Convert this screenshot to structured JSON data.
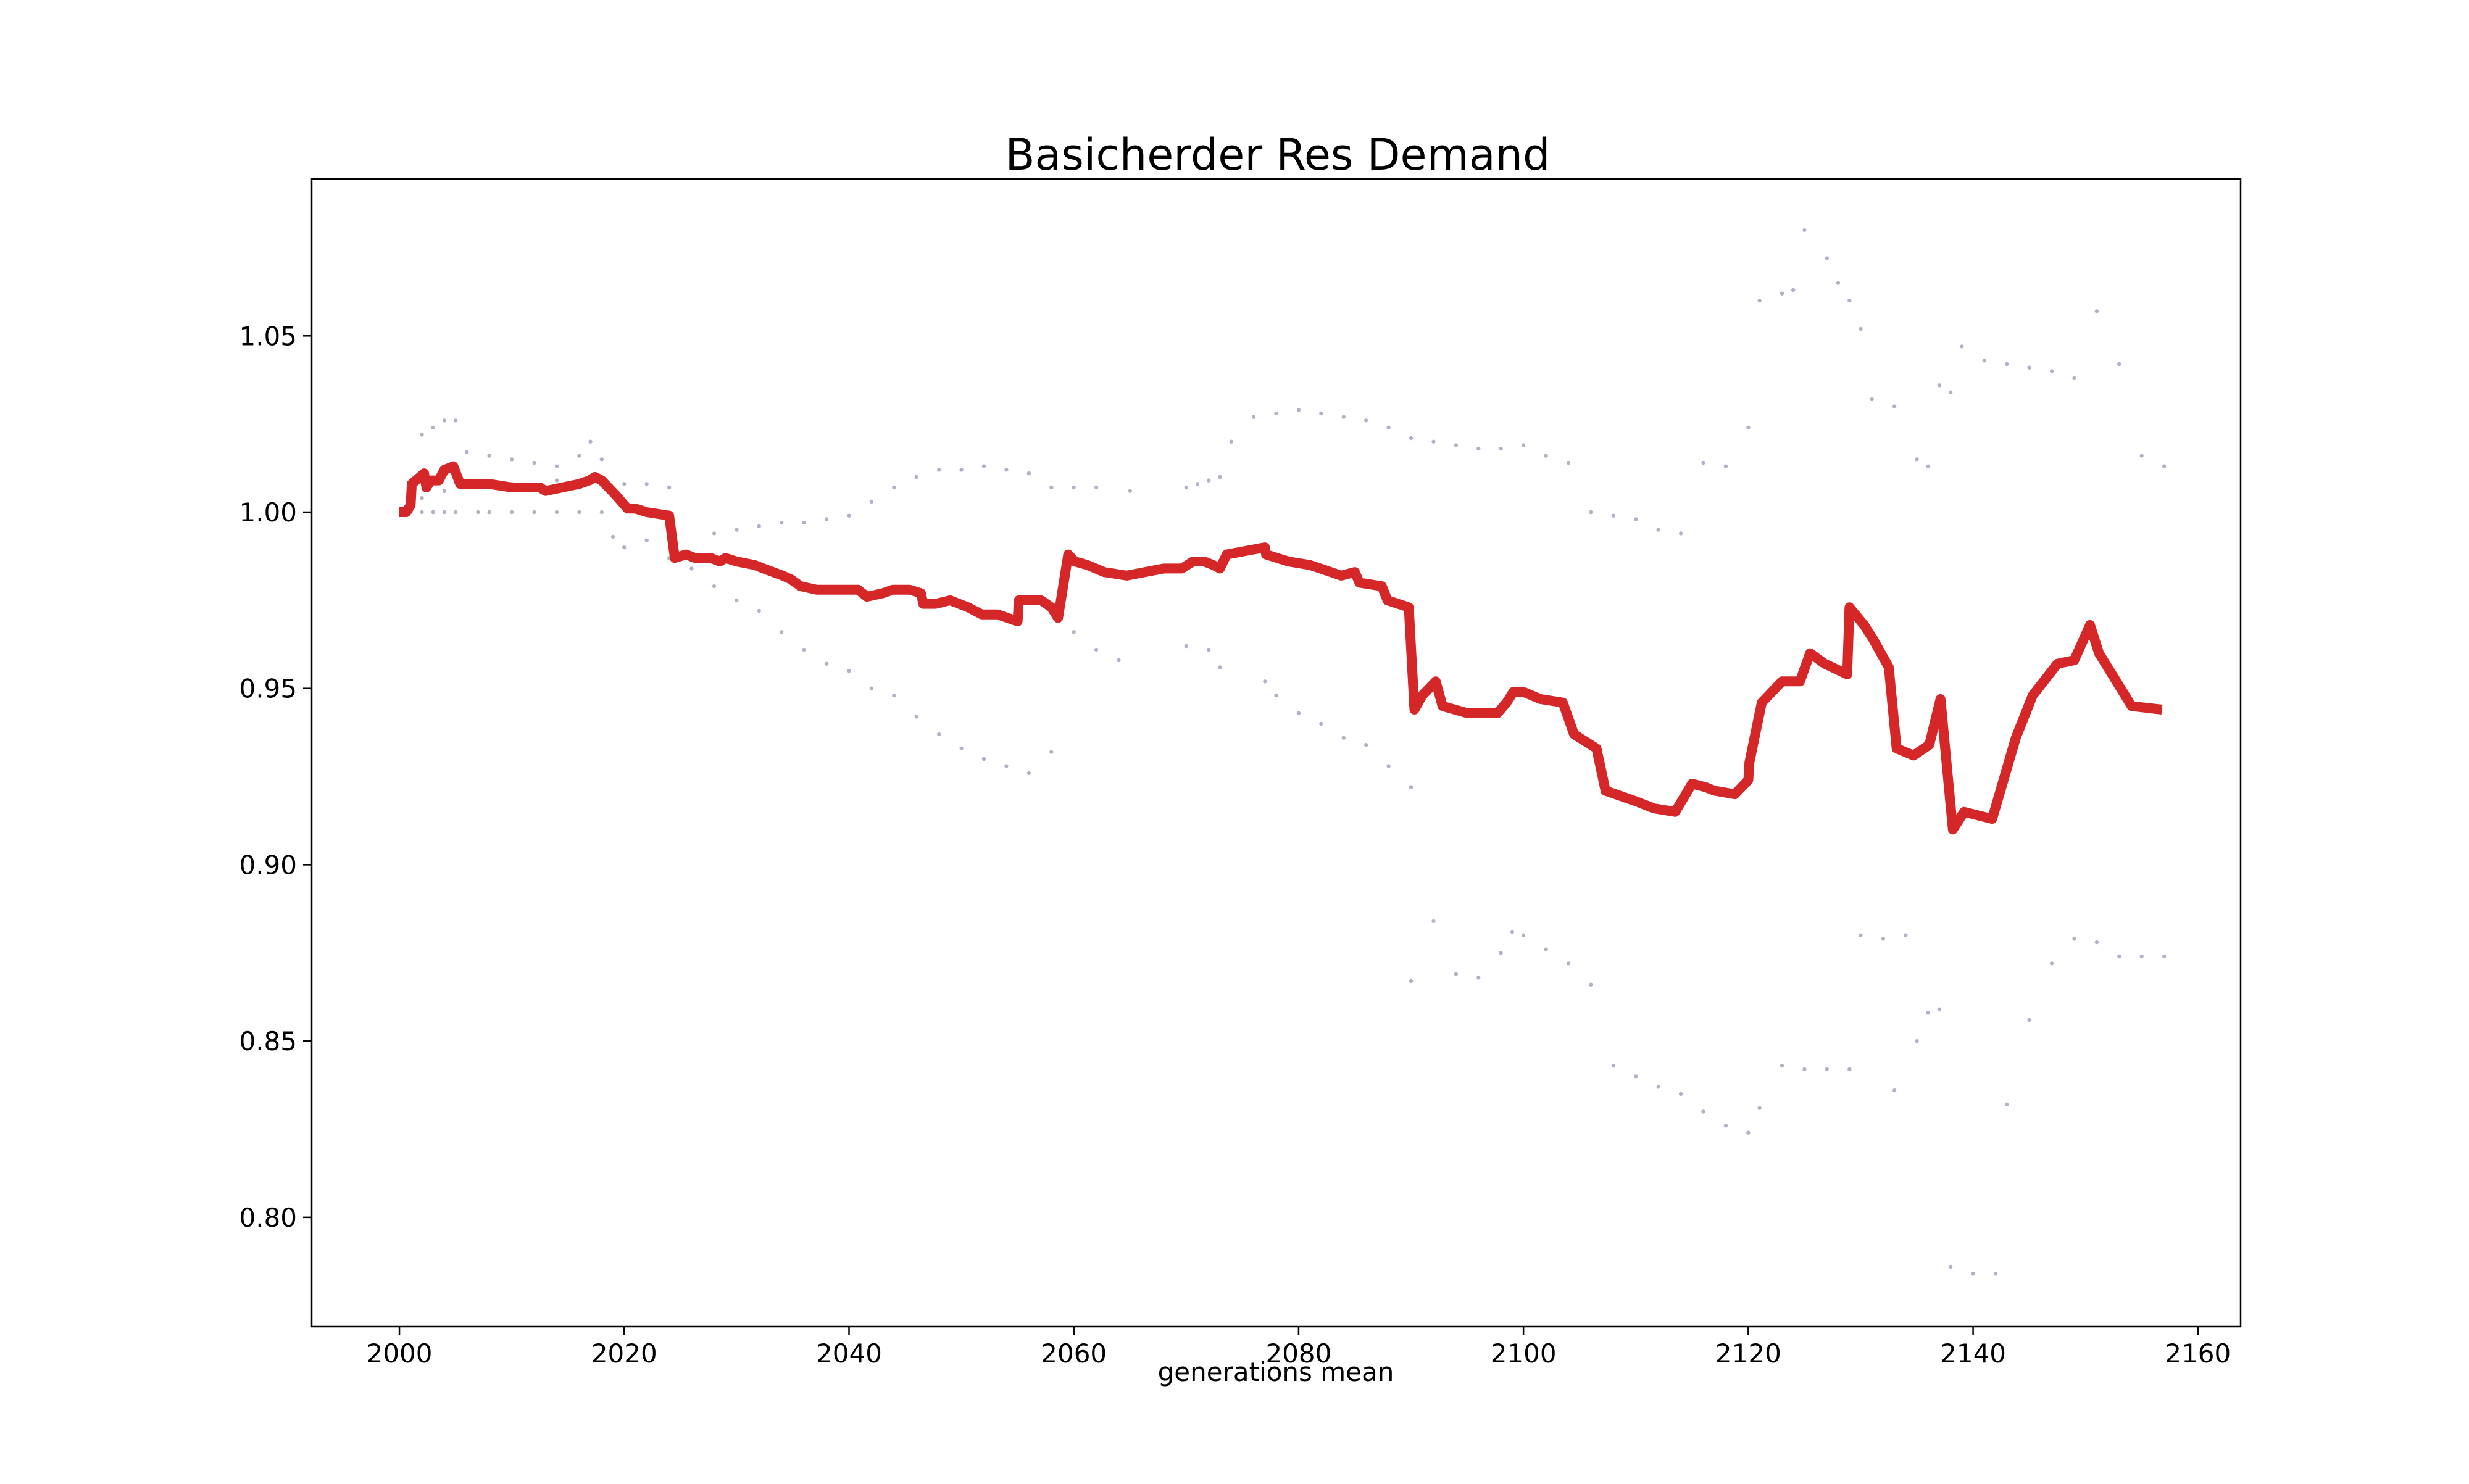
{
  "chart_data": {
    "type": "line",
    "title": "Basicherder Res Demand",
    "xlabel": "generations mean",
    "ylabel": "",
    "xlim": [
      1992.2,
      2163.8
    ],
    "ylim": [
      0.769,
      1.0945
    ],
    "x_ticks": [
      "2000",
      "2020",
      "2040",
      "2060",
      "2080",
      "2100",
      "2120",
      "2140",
      "2160"
    ],
    "y_ticks": [
      "0.80",
      "0.85",
      "0.90",
      "0.95",
      "1.00",
      "1.05"
    ],
    "grid": false,
    "legend": "none",
    "colors": {
      "mean_line": "#d62728",
      "scatter": "#b0b3c6",
      "frame": "#000000"
    },
    "series": [
      {
        "role": "mean",
        "points": [
          [
            2000.0,
            1.0
          ],
          [
            2000.6,
            1.0
          ],
          [
            2001.0,
            1.002
          ],
          [
            2001.1,
            1.008
          ],
          [
            2002.2,
            1.011
          ],
          [
            2002.4,
            1.007
          ],
          [
            2002.8,
            1.009
          ],
          [
            2003.5,
            1.009
          ],
          [
            2004.0,
            1.012
          ],
          [
            2004.8,
            1.013
          ],
          [
            2005.4,
            1.008
          ],
          [
            2008.0,
            1.008
          ],
          [
            2010.0,
            1.007
          ],
          [
            2012.5,
            1.007
          ],
          [
            2013.0,
            1.006
          ],
          [
            2014.5,
            1.007
          ],
          [
            2016.0,
            1.008
          ],
          [
            2016.9,
            1.009
          ],
          [
            2017.4,
            1.01
          ],
          [
            2018.0,
            1.009
          ],
          [
            2019.2,
            1.005
          ],
          [
            2020.3,
            1.001
          ],
          [
            2021.0,
            1.001
          ],
          [
            2022.0,
            1.0
          ],
          [
            2024.0,
            0.999
          ],
          [
            2024.5,
            0.987
          ],
          [
            2025.5,
            0.988
          ],
          [
            2026.3,
            0.987
          ],
          [
            2027.7,
            0.987
          ],
          [
            2028.5,
            0.986
          ],
          [
            2029.0,
            0.987
          ],
          [
            2030.0,
            0.986
          ],
          [
            2031.6,
            0.985
          ],
          [
            2032.4,
            0.984
          ],
          [
            2034.1,
            0.982
          ],
          [
            2034.8,
            0.981
          ],
          [
            2035.7,
            0.979
          ],
          [
            2037.1,
            0.978
          ],
          [
            2040.8,
            0.978
          ],
          [
            2041.6,
            0.976
          ],
          [
            2043.0,
            0.977
          ],
          [
            2043.9,
            0.978
          ],
          [
            2045.4,
            0.978
          ],
          [
            2046.4,
            0.977
          ],
          [
            2046.6,
            0.974
          ],
          [
            2047.7,
            0.974
          ],
          [
            2049.0,
            0.975
          ],
          [
            2050.6,
            0.973
          ],
          [
            2051.8,
            0.971
          ],
          [
            2053.2,
            0.971
          ],
          [
            2055.0,
            0.969
          ],
          [
            2055.1,
            0.975
          ],
          [
            2057.1,
            0.975
          ],
          [
            2058.0,
            0.973
          ],
          [
            2058.6,
            0.97
          ],
          [
            2059.5,
            0.988
          ],
          [
            2060.1,
            0.986
          ],
          [
            2061.2,
            0.985
          ],
          [
            2062.7,
            0.983
          ],
          [
            2064.7,
            0.982
          ],
          [
            2068.0,
            0.984
          ],
          [
            2069.6,
            0.984
          ],
          [
            2070.6,
            0.986
          ],
          [
            2071.6,
            0.986
          ],
          [
            2072.4,
            0.985
          ],
          [
            2073.0,
            0.984
          ],
          [
            2073.6,
            0.988
          ],
          [
            2077.0,
            0.99
          ],
          [
            2077.1,
            0.988
          ],
          [
            2079.1,
            0.986
          ],
          [
            2081.0,
            0.985
          ],
          [
            2083.8,
            0.982
          ],
          [
            2085.0,
            0.983
          ],
          [
            2085.4,
            0.98
          ],
          [
            2087.4,
            0.979
          ],
          [
            2087.9,
            0.975
          ],
          [
            2089.8,
            0.973
          ],
          [
            2090.3,
            0.944
          ],
          [
            2091.0,
            0.948
          ],
          [
            2092.2,
            0.952
          ],
          [
            2092.8,
            0.945
          ],
          [
            2095.0,
            0.943
          ],
          [
            2097.7,
            0.943
          ],
          [
            2098.5,
            0.946
          ],
          [
            2099.1,
            0.949
          ],
          [
            2100.0,
            0.949
          ],
          [
            2101.5,
            0.947
          ],
          [
            2103.5,
            0.946
          ],
          [
            2104.5,
            0.937
          ],
          [
            2106.5,
            0.933
          ],
          [
            2107.3,
            0.921
          ],
          [
            2110.0,
            0.918
          ],
          [
            2111.6,
            0.916
          ],
          [
            2113.5,
            0.915
          ],
          [
            2115.0,
            0.923
          ],
          [
            2116.2,
            0.922
          ],
          [
            2117.0,
            0.921
          ],
          [
            2118.8,
            0.92
          ],
          [
            2120.0,
            0.924
          ],
          [
            2120.1,
            0.929
          ],
          [
            2121.2,
            0.946
          ],
          [
            2123.0,
            0.952
          ],
          [
            2124.6,
            0.952
          ],
          [
            2125.5,
            0.96
          ],
          [
            2126.8,
            0.957
          ],
          [
            2128.8,
            0.954
          ],
          [
            2129.0,
            0.973
          ],
          [
            2130.3,
            0.968
          ],
          [
            2131.1,
            0.964
          ],
          [
            2132.5,
            0.956
          ],
          [
            2133.2,
            0.933
          ],
          [
            2134.7,
            0.931
          ],
          [
            2136.1,
            0.934
          ],
          [
            2137.1,
            0.947
          ],
          [
            2138.2,
            0.91
          ],
          [
            2139.2,
            0.915
          ],
          [
            2141.7,
            0.913
          ],
          [
            2143.8,
            0.936
          ],
          [
            2145.3,
            0.948
          ],
          [
            2147.5,
            0.957
          ],
          [
            2149.0,
            0.958
          ],
          [
            2150.4,
            0.968
          ],
          [
            2151.2,
            0.96
          ],
          [
            2154.1,
            0.945
          ],
          [
            2156.8,
            0.944
          ]
        ]
      },
      {
        "role": "samples",
        "points": [
          [
            2001,
            1.0
          ],
          [
            2002,
            1.0
          ],
          [
            2003,
            1.0
          ],
          [
            2004,
            1.0
          ],
          [
            2005,
            1.0
          ],
          [
            2007,
            1.0
          ],
          [
            2008,
            1.0
          ],
          [
            2010,
            1.0
          ],
          [
            2012,
            1.0
          ],
          [
            2014,
            1.0
          ],
          [
            2016,
            1.0
          ],
          [
            2018,
            1.0
          ],
          [
            2002,
            1.022
          ],
          [
            2003,
            1.024
          ],
          [
            2004,
            1.026
          ],
          [
            2005,
            1.026
          ],
          [
            2006,
            1.017
          ],
          [
            2008,
            1.016
          ],
          [
            2010,
            1.015
          ],
          [
            2012,
            1.014
          ],
          [
            2014,
            1.013
          ],
          [
            2016,
            1.016
          ],
          [
            2017,
            1.02
          ],
          [
            2018,
            1.015
          ],
          [
            2002,
            1.004
          ],
          [
            2004,
            1.006
          ],
          [
            2006,
            1.007
          ],
          [
            2010,
            1.008
          ],
          [
            2014,
            1.009
          ],
          [
            2018,
            1.009
          ],
          [
            2020,
            1.008
          ],
          [
            2022,
            1.008
          ],
          [
            2024,
            1.007
          ],
          [
            2019,
            0.993
          ],
          [
            2020,
            0.99
          ],
          [
            2022,
            0.992
          ],
          [
            2024,
            0.987
          ],
          [
            2026,
            0.984
          ],
          [
            2028,
            0.979
          ],
          [
            2030,
            0.975
          ],
          [
            2032,
            0.972
          ],
          [
            2034,
            0.966
          ],
          [
            2036,
            0.961
          ],
          [
            2038,
            0.957
          ],
          [
            2040,
            0.955
          ],
          [
            2042,
            0.95
          ],
          [
            2044,
            0.948
          ],
          [
            2046,
            0.942
          ],
          [
            2048,
            0.937
          ],
          [
            2050,
            0.933
          ],
          [
            2052,
            0.93
          ],
          [
            2054,
            0.928
          ],
          [
            2056,
            0.926
          ],
          [
            2058,
            0.932
          ],
          [
            2028,
            0.994
          ],
          [
            2030,
            0.995
          ],
          [
            2032,
            0.996
          ],
          [
            2034,
            0.997
          ],
          [
            2036,
            0.997
          ],
          [
            2038,
            0.998
          ],
          [
            2040,
            0.999
          ],
          [
            2042,
            1.003
          ],
          [
            2044,
            1.007
          ],
          [
            2046,
            1.01
          ],
          [
            2048,
            1.012
          ],
          [
            2050,
            1.012
          ],
          [
            2052,
            1.013
          ],
          [
            2054,
            1.012
          ],
          [
            2056,
            1.011
          ],
          [
            2058,
            1.007
          ],
          [
            2060,
            1.007
          ],
          [
            2062,
            1.007
          ],
          [
            2065,
            1.006
          ],
          [
            2060,
            0.966
          ],
          [
            2062,
            0.961
          ],
          [
            2064,
            0.958
          ],
          [
            2070,
            0.962
          ],
          [
            2072,
            0.961
          ],
          [
            2073,
            0.956
          ],
          [
            2070,
            1.007
          ],
          [
            2071,
            1.008
          ],
          [
            2072,
            1.009
          ],
          [
            2073,
            1.01
          ],
          [
            2074,
            1.02
          ],
          [
            2076,
            1.027
          ],
          [
            2078,
            1.028
          ],
          [
            2080,
            1.029
          ],
          [
            2082,
            1.028
          ],
          [
            2084,
            1.027
          ],
          [
            2086,
            1.026
          ],
          [
            2088,
            1.024
          ],
          [
            2090,
            1.021
          ],
          [
            2092,
            1.02
          ],
          [
            2094,
            1.019
          ],
          [
            2096,
            1.018
          ],
          [
            2098,
            1.018
          ],
          [
            2100,
            1.019
          ],
          [
            2102,
            1.016
          ],
          [
            2104,
            1.014
          ],
          [
            2106,
            1.0
          ],
          [
            2108,
            0.999
          ],
          [
            2110,
            0.998
          ],
          [
            2112,
            0.995
          ],
          [
            2114,
            0.994
          ],
          [
            2116,
            1.014
          ],
          [
            2118,
            1.013
          ],
          [
            2120,
            1.024
          ],
          [
            2077,
            0.952
          ],
          [
            2078,
            0.948
          ],
          [
            2080,
            0.943
          ],
          [
            2082,
            0.94
          ],
          [
            2084,
            0.936
          ],
          [
            2086,
            0.934
          ],
          [
            2088,
            0.928
          ],
          [
            2090,
            0.922
          ],
          [
            2090,
            0.867
          ],
          [
            2092,
            0.884
          ],
          [
            2094,
            0.869
          ],
          [
            2096,
            0.868
          ],
          [
            2098,
            0.875
          ],
          [
            2099,
            0.881
          ],
          [
            2100,
            0.88
          ],
          [
            2102,
            0.876
          ],
          [
            2104,
            0.872
          ],
          [
            2106,
            0.866
          ],
          [
            2108,
            0.843
          ],
          [
            2110,
            0.84
          ],
          [
            2112,
            0.837
          ],
          [
            2114,
            0.835
          ],
          [
            2116,
            0.83
          ],
          [
            2118,
            0.826
          ],
          [
            2120,
            0.824
          ],
          [
            2121,
            0.831
          ],
          [
            2121,
            1.06
          ],
          [
            2123,
            1.062
          ],
          [
            2124,
            1.063
          ],
          [
            2125,
            1.08
          ],
          [
            2127,
            1.072
          ],
          [
            2128,
            1.065
          ],
          [
            2129,
            1.06
          ],
          [
            2130,
            1.052
          ],
          [
            2131,
            1.032
          ],
          [
            2133,
            1.03
          ],
          [
            2135,
            1.015
          ],
          [
            2136,
            1.013
          ],
          [
            2137,
            1.036
          ],
          [
            2138,
            1.034
          ],
          [
            2139,
            1.047
          ],
          [
            2141,
            1.043
          ],
          [
            2143,
            1.042
          ],
          [
            2145,
            1.041
          ],
          [
            2147,
            1.04
          ],
          [
            2149,
            1.038
          ],
          [
            2151,
            1.057
          ],
          [
            2153,
            1.042
          ],
          [
            2155,
            1.016
          ],
          [
            2157,
            1.013
          ],
          [
            2123,
            0.843
          ],
          [
            2125,
            0.842
          ],
          [
            2127,
            0.842
          ],
          [
            2129,
            0.842
          ],
          [
            2130,
            0.88
          ],
          [
            2132,
            0.879
          ],
          [
            2134,
            0.88
          ],
          [
            2135,
            0.85
          ],
          [
            2136,
            0.858
          ],
          [
            2137,
            0.859
          ],
          [
            2138,
            0.786
          ],
          [
            2140,
            0.784
          ],
          [
            2142,
            0.784
          ],
          [
            2143,
            0.832
          ],
          [
            2145,
            0.856
          ],
          [
            2147,
            0.872
          ],
          [
            2149,
            0.879
          ],
          [
            2151,
            0.878
          ],
          [
            2153,
            0.874
          ],
          [
            2155,
            0.874
          ],
          [
            2157,
            0.874
          ],
          [
            2133,
            0.836
          ]
        ]
      }
    ]
  }
}
